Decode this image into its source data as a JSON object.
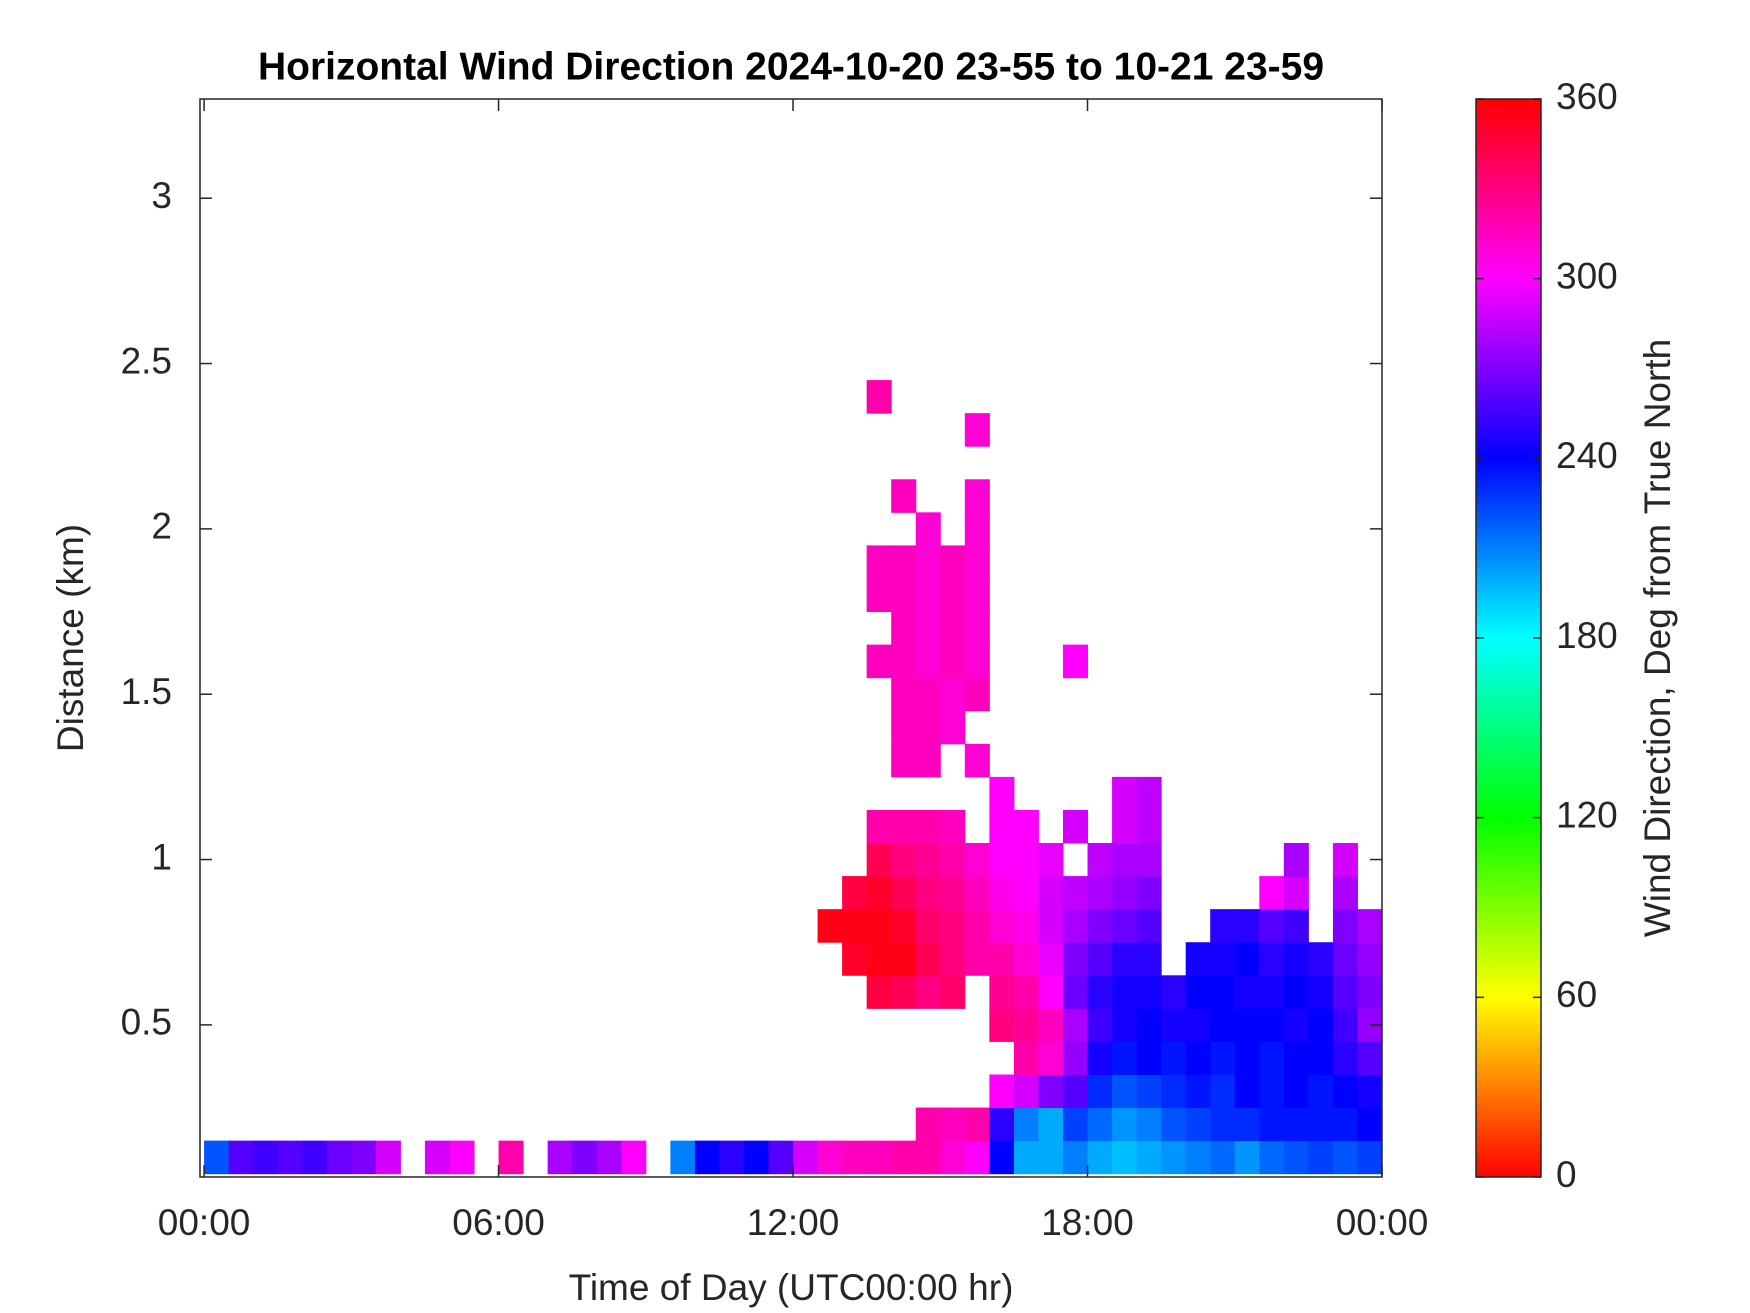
{
  "chart_data": {
    "type": "heatmap",
    "title": "Horizontal Wind Direction 2024-10-20 23-55 to 10-21 23-59",
    "x_label": "Time of Day (UTC00:00 hr)",
    "y_label": "Distance (km)",
    "xlim": [
      -0.083,
      24
    ],
    "xticks": [
      {
        "value": 0,
        "label": "00:00"
      },
      {
        "value": 6,
        "label": "06:00"
      },
      {
        "value": 12,
        "label": "12:00"
      },
      {
        "value": 18,
        "label": "18:00"
      },
      {
        "value": 24,
        "label": "00:00"
      }
    ],
    "ylim": [
      0.04,
      3.3
    ],
    "yticks": [
      0.5,
      1,
      1.5,
      2,
      2.5,
      3
    ],
    "x": [
      0.25,
      0.75,
      1.25,
      1.75,
      2.25,
      2.75,
      3.25,
      3.75,
      4.25,
      4.75,
      5.25,
      5.75,
      6.25,
      6.75,
      7.25,
      7.75,
      8.25,
      8.75,
      9.25,
      9.75,
      10.25,
      10.75,
      11.25,
      11.75,
      12.25,
      12.75,
      13.25,
      13.75,
      14.25,
      14.75,
      15.25,
      15.75,
      16.25,
      16.75,
      17.25,
      17.75,
      18.25,
      18.75,
      19.25,
      19.75,
      20.25,
      20.75,
      21.25,
      21.75,
      22.25,
      22.75,
      23.25,
      23.75
    ],
    "y": [
      0.1,
      0.2,
      0.3,
      0.4,
      0.5,
      0.6,
      0.7,
      0.8,
      0.9,
      1.0,
      1.1,
      1.2,
      1.3,
      1.4,
      1.5,
      1.6,
      1.7,
      1.8,
      1.9,
      2.0,
      2.1,
      2.2,
      2.3,
      2.4
    ],
    "z": [
      [
        220,
        260,
        255,
        260,
        255,
        265,
        270,
        290,
        null,
        290,
        300,
        null,
        320,
        null,
        280,
        270,
        280,
        300,
        null,
        210,
        240,
        250,
        240,
        260,
        290,
        310,
        315,
        315,
        320,
        320,
        310,
        300,
        240,
        200,
        200,
        210,
        200,
        195,
        200,
        205,
        210,
        215,
        205,
        215,
        220,
        225,
        220,
        225
      ],
      [
        null,
        null,
        null,
        null,
        null,
        null,
        null,
        null,
        null,
        null,
        null,
        null,
        null,
        null,
        null,
        null,
        null,
        null,
        null,
        null,
        null,
        null,
        null,
        null,
        null,
        null,
        null,
        null,
        null,
        320,
        315,
        320,
        250,
        210,
        200,
        225,
        215,
        205,
        210,
        220,
        225,
        230,
        230,
        235,
        235,
        235,
        235,
        240
      ],
      [
        null,
        null,
        null,
        null,
        null,
        null,
        null,
        null,
        null,
        null,
        null,
        null,
        null,
        null,
        null,
        null,
        null,
        null,
        null,
        null,
        null,
        null,
        null,
        null,
        null,
        null,
        null,
        null,
        null,
        null,
        null,
        null,
        300,
        290,
        270,
        260,
        230,
        220,
        225,
        230,
        235,
        230,
        240,
        235,
        240,
        235,
        240,
        245
      ],
      [
        null,
        null,
        null,
        null,
        null,
        null,
        null,
        null,
        null,
        null,
        null,
        null,
        null,
        null,
        null,
        null,
        null,
        null,
        null,
        null,
        null,
        null,
        null,
        null,
        null,
        null,
        null,
        null,
        null,
        null,
        null,
        null,
        null,
        320,
        310,
        275,
        245,
        235,
        240,
        235,
        240,
        235,
        240,
        235,
        240,
        240,
        250,
        260
      ],
      [
        null,
        null,
        null,
        null,
        null,
        null,
        null,
        null,
        null,
        null,
        null,
        null,
        null,
        null,
        null,
        null,
        null,
        null,
        null,
        null,
        null,
        null,
        null,
        null,
        null,
        null,
        null,
        null,
        null,
        null,
        null,
        null,
        330,
        325,
        315,
        280,
        255,
        245,
        240,
        245,
        245,
        240,
        240,
        240,
        245,
        240,
        255,
        275
      ],
      [
        null,
        null,
        null,
        null,
        null,
        null,
        null,
        null,
        null,
        null,
        null,
        null,
        null,
        null,
        null,
        null,
        null,
        null,
        null,
        null,
        null,
        null,
        null,
        null,
        null,
        null,
        null,
        345,
        340,
        330,
        335,
        null,
        325,
        320,
        300,
        265,
        250,
        245,
        245,
        250,
        240,
        240,
        245,
        245,
        240,
        245,
        260,
        270
      ],
      [
        null,
        null,
        null,
        null,
        null,
        null,
        null,
        null,
        null,
        null,
        null,
        null,
        null,
        null,
        null,
        null,
        null,
        null,
        null,
        null,
        null,
        null,
        null,
        null,
        null,
        null,
        350,
        355,
        355,
        340,
        330,
        320,
        320,
        310,
        295,
        270,
        260,
        250,
        250,
        null,
        245,
        245,
        240,
        250,
        245,
        250,
        265,
        275
      ],
      [
        null,
        null,
        null,
        null,
        null,
        null,
        null,
        null,
        null,
        null,
        null,
        null,
        null,
        null,
        null,
        null,
        null,
        null,
        null,
        null,
        null,
        null,
        null,
        null,
        null,
        355,
        355,
        355,
        350,
        335,
        330,
        320,
        310,
        305,
        290,
        280,
        270,
        265,
        260,
        null,
        null,
        250,
        250,
        260,
        255,
        null,
        270,
        280
      ],
      [
        null,
        null,
        null,
        null,
        null,
        null,
        null,
        null,
        null,
        null,
        null,
        null,
        null,
        null,
        null,
        null,
        null,
        null,
        null,
        null,
        null,
        null,
        null,
        null,
        null,
        null,
        345,
        350,
        340,
        330,
        325,
        315,
        305,
        300,
        290,
        285,
        280,
        275,
        270,
        null,
        null,
        null,
        null,
        300,
        290,
        null,
        280,
        null
      ],
      [
        null,
        null,
        null,
        null,
        null,
        null,
        null,
        null,
        null,
        null,
        null,
        null,
        null,
        null,
        null,
        null,
        null,
        null,
        null,
        null,
        null,
        null,
        null,
        null,
        null,
        null,
        null,
        340,
        330,
        325,
        320,
        310,
        300,
        300,
        295,
        null,
        285,
        280,
        280,
        null,
        null,
        null,
        null,
        null,
        280,
        null,
        290,
        null
      ],
      [
        null,
        null,
        null,
        null,
        null,
        null,
        null,
        null,
        null,
        null,
        null,
        null,
        null,
        null,
        null,
        null,
        null,
        null,
        null,
        null,
        null,
        null,
        null,
        null,
        null,
        null,
        null,
        320,
        320,
        320,
        315,
        null,
        300,
        300,
        null,
        290,
        null,
        290,
        285,
        null,
        null,
        null,
        null,
        null,
        null,
        null,
        null,
        null
      ],
      [
        null,
        null,
        null,
        null,
        null,
        null,
        null,
        null,
        null,
        null,
        null,
        null,
        null,
        null,
        null,
        null,
        null,
        null,
        null,
        null,
        null,
        null,
        null,
        null,
        null,
        null,
        null,
        null,
        null,
        null,
        null,
        null,
        300,
        null,
        null,
        null,
        null,
        290,
        285,
        null,
        null,
        null,
        null,
        null,
        null,
        null,
        null,
        null
      ],
      [
        null,
        null,
        null,
        null,
        null,
        null,
        null,
        null,
        null,
        null,
        null,
        null,
        null,
        null,
        null,
        null,
        null,
        null,
        null,
        null,
        null,
        null,
        null,
        null,
        null,
        null,
        null,
        null,
        315,
        315,
        null,
        310,
        null,
        null,
        null,
        null,
        null,
        null,
        null,
        null,
        null,
        null,
        null,
        null,
        null,
        null,
        null,
        null
      ],
      [
        null,
        null,
        null,
        null,
        null,
        null,
        null,
        null,
        null,
        null,
        null,
        null,
        null,
        null,
        null,
        null,
        null,
        null,
        null,
        null,
        null,
        null,
        null,
        null,
        null,
        null,
        null,
        null,
        315,
        315,
        310,
        null,
        null,
        null,
        null,
        null,
        null,
        null,
        null,
        null,
        null,
        null,
        null,
        null,
        null,
        null,
        null,
        null
      ],
      [
        null,
        null,
        null,
        null,
        null,
        null,
        null,
        null,
        null,
        null,
        null,
        null,
        null,
        null,
        null,
        null,
        null,
        null,
        null,
        null,
        null,
        null,
        null,
        null,
        null,
        null,
        null,
        null,
        315,
        315,
        310,
        315,
        null,
        null,
        null,
        null,
        null,
        null,
        null,
        null,
        null,
        null,
        null,
        null,
        null,
        null,
        null,
        null
      ],
      [
        null,
        null,
        null,
        null,
        null,
        null,
        null,
        null,
        null,
        null,
        null,
        null,
        null,
        null,
        null,
        null,
        null,
        null,
        null,
        null,
        null,
        null,
        null,
        null,
        null,
        null,
        null,
        315,
        315,
        310,
        315,
        310,
        null,
        null,
        null,
        300,
        null,
        null,
        null,
        null,
        null,
        null,
        null,
        null,
        null,
        null,
        null,
        null
      ],
      [
        null,
        null,
        null,
        null,
        null,
        null,
        null,
        null,
        null,
        null,
        null,
        null,
        null,
        null,
        null,
        null,
        null,
        null,
        null,
        null,
        null,
        null,
        null,
        null,
        null,
        null,
        null,
        null,
        315,
        310,
        315,
        310,
        null,
        null,
        null,
        null,
        null,
        null,
        null,
        null,
        null,
        null,
        null,
        null,
        null,
        null,
        null,
        null
      ],
      [
        null,
        null,
        null,
        null,
        null,
        null,
        null,
        null,
        null,
        null,
        null,
        null,
        null,
        null,
        null,
        null,
        null,
        null,
        null,
        null,
        null,
        null,
        null,
        null,
        null,
        null,
        null,
        315,
        315,
        310,
        315,
        310,
        null,
        null,
        null,
        null,
        null,
        null,
        null,
        null,
        null,
        null,
        null,
        null,
        null,
        null,
        null,
        null
      ],
      [
        null,
        null,
        null,
        null,
        null,
        null,
        null,
        null,
        null,
        null,
        null,
        null,
        null,
        null,
        null,
        null,
        null,
        null,
        null,
        null,
        null,
        null,
        null,
        null,
        null,
        null,
        null,
        315,
        315,
        310,
        315,
        310,
        null,
        null,
        null,
        null,
        null,
        null,
        null,
        null,
        null,
        null,
        null,
        null,
        null,
        null,
        null,
        null
      ],
      [
        null,
        null,
        null,
        null,
        null,
        null,
        null,
        null,
        null,
        null,
        null,
        null,
        null,
        null,
        null,
        null,
        null,
        null,
        null,
        null,
        null,
        null,
        null,
        null,
        null,
        null,
        null,
        null,
        null,
        310,
        null,
        310,
        null,
        null,
        null,
        null,
        null,
        null,
        null,
        null,
        null,
        null,
        null,
        null,
        null,
        null,
        null,
        null
      ],
      [
        null,
        null,
        null,
        null,
        null,
        null,
        null,
        null,
        null,
        null,
        null,
        null,
        null,
        null,
        null,
        null,
        null,
        null,
        null,
        null,
        null,
        null,
        null,
        null,
        null,
        null,
        null,
        null,
        315,
        null,
        null,
        310,
        null,
        null,
        null,
        null,
        null,
        null,
        null,
        null,
        null,
        null,
        null,
        null,
        null,
        null,
        null,
        null
      ],
      [
        null,
        null,
        null,
        null,
        null,
        null,
        null,
        null,
        null,
        null,
        null,
        null,
        null,
        null,
        null,
        null,
        null,
        null,
        null,
        null,
        null,
        null,
        null,
        null,
        null,
        null,
        null,
        null,
        null,
        null,
        null,
        null,
        null,
        null,
        null,
        null,
        null,
        null,
        null,
        null,
        null,
        null,
        null,
        null,
        null,
        null,
        null,
        null
      ],
      [
        null,
        null,
        null,
        null,
        null,
        null,
        null,
        null,
        null,
        null,
        null,
        null,
        null,
        null,
        null,
        null,
        null,
        null,
        null,
        null,
        null,
        null,
        null,
        null,
        null,
        null,
        null,
        null,
        null,
        null,
        null,
        310,
        null,
        null,
        null,
        null,
        null,
        null,
        null,
        null,
        null,
        null,
        null,
        null,
        null,
        null,
        null,
        null
      ],
      [
        null,
        null,
        null,
        null,
        null,
        null,
        null,
        null,
        null,
        null,
        null,
        null,
        null,
        null,
        null,
        null,
        null,
        null,
        null,
        null,
        null,
        null,
        null,
        null,
        null,
        null,
        null,
        320,
        null,
        null,
        null,
        null,
        null,
        null,
        null,
        null,
        null,
        null,
        null,
        null,
        null,
        null,
        null,
        null,
        null,
        null,
        null,
        null
      ]
    ],
    "colorbar": {
      "label": "Wind Direction, Deg from True North",
      "clim": [
        0,
        360
      ],
      "ticks": [
        0,
        60,
        120,
        180,
        240,
        300,
        360
      ]
    }
  }
}
